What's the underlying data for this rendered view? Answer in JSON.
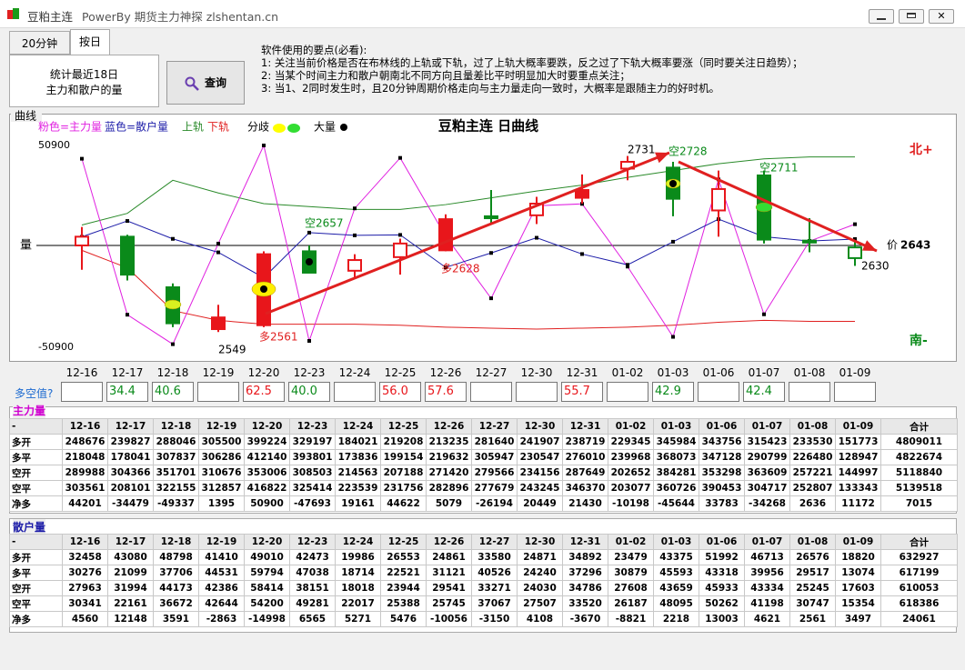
{
  "window": {
    "title": "豆粕主连",
    "subtitle": "PowerBy 期货主力神探 zlshentan.cn"
  },
  "tabs": [
    "20分钟",
    "按日"
  ],
  "panel": {
    "lines": [
      "统计最近18日",
      "主力和散户的量"
    ],
    "button": "查询"
  },
  "notes": [
    "软件使用的要点(必看):",
    "1: 关注当前价格是否在布林线的上轨或下轨，过了上轨大概率要跌，反之过了下轨大概率要涨（同时要关注日趋势）；",
    "2: 当某个时间主力和散户朝南北不同方向且量差比平时明显加大时要重点关注；",
    "3: 当1、2同时发生时，且20分钟周期价格走向与主力量走向一致时，大概率是跟随主力的好时机。"
  ],
  "dates": [
    "12-16",
    "12-17",
    "12-18",
    "12-19",
    "12-20",
    "12-23",
    "12-24",
    "12-25",
    "12-26",
    "12-27",
    "12-30",
    "12-31",
    "01-02",
    "01-03",
    "01-06",
    "01-07",
    "01-08",
    "01-09"
  ],
  "chart": {
    "group_label": "曲线",
    "title": "豆粕主连 日曲线",
    "legend": {
      "main": "粉色=主力量",
      "retail": "蓝色=散户量",
      "upper": "上轨",
      "lower": "下轨",
      "diverge": "分歧",
      "big": "大量"
    },
    "colors": {
      "main": "#e020e0",
      "retail": "#1c1ca8",
      "upper": "#2a8a2a",
      "lower": "#e02020",
      "up": "#e8161b",
      "down": "#0a8a1a"
    },
    "ylim": [
      -50900,
      50900
    ],
    "y_label": "量",
    "north": "北+",
    "south": "南-",
    "price_label": "价",
    "last_price": 2643,
    "annotations": [
      "2731",
      "空2728",
      "空2711",
      "空2657",
      "多2628",
      "多2561",
      "2549",
      "2630"
    ],
    "upper": [
      2664,
      2676,
      2710,
      2697,
      2686,
      2683,
      2680,
      2680,
      2685,
      2692,
      2699,
      2705,
      2713,
      2720,
      2727,
      2732,
      2734,
      2734
    ],
    "lower": [
      2638,
      2620,
      2576,
      2566,
      2562,
      2562,
      2562,
      2561,
      2559,
      2558,
      2557,
      2558,
      2559,
      2561,
      2564,
      2566,
      2565,
      2565
    ],
    "candles": {
      "open": [
        2643,
        2652,
        2600,
        2557,
        2561,
        2637,
        2617,
        2631,
        2638,
        2673,
        2674,
        2692,
        2722,
        2723,
        2679,
        2715,
        2648,
        2641
      ],
      "high": [
        2662,
        2654,
        2604,
        2582,
        2637,
        2643,
        2634,
        2650,
        2675,
        2700,
        2693,
        2716,
        2735,
        2729,
        2720,
        2720,
        2671,
        2647
      ],
      "low": [
        2618,
        2607,
        2559,
        2554,
        2559,
        2615,
        2609,
        2613,
        2637,
        2666,
        2665,
        2686,
        2710,
        2673,
        2652,
        2645,
        2636,
        2622
      ],
      "close": [
        2652,
        2613,
        2563,
        2569,
        2634,
        2615,
        2628,
        2645,
        2670,
        2671,
        2686,
        2700,
        2729,
        2691,
        2701,
        2649,
        2646,
        2630
      ],
      "hollow": [
        true,
        false,
        false,
        false,
        false,
        false,
        true,
        true,
        false,
        false,
        true,
        false,
        true,
        false,
        true,
        false,
        false,
        true
      ]
    }
  },
  "ratio": {
    "label": "多空值?",
    "values": [
      null,
      34.4,
      40.6,
      null,
      62.5,
      40.0,
      null,
      56.0,
      57.6,
      null,
      null,
      55.7,
      null,
      42.9,
      null,
      42.4,
      null,
      null
    ],
    "value_labels": [
      null,
      "34.4",
      "40.6",
      null,
      "62.5",
      "40.0",
      null,
      "56.0",
      "57.6",
      null,
      null,
      "55.7",
      null,
      "42.9",
      null,
      "42.4",
      null,
      null
    ]
  },
  "zhuli": {
    "title": "主力量",
    "first_header": "-",
    "total_header": "合计",
    "rows": [
      {
        "name": "多开",
        "values": [
          248676,
          239827,
          288046,
          305500,
          399224,
          329197,
          184021,
          219208,
          213235,
          281640,
          241907,
          238719,
          229345,
          345984,
          343756,
          315423,
          233530,
          151773
        ],
        "total": 4809011
      },
      {
        "name": "多平",
        "values": [
          218048,
          178041,
          307837,
          306286,
          412140,
          393801,
          173836,
          199154,
          219632,
          305947,
          230547,
          276010,
          239968,
          368073,
          347128,
          290799,
          226480,
          128947
        ],
        "total": 4822674
      },
      {
        "name": "空开",
        "values": [
          289988,
          304366,
          351701,
          310676,
          353006,
          308503,
          214563,
          207188,
          271420,
          279566,
          234156,
          287649,
          202652,
          384281,
          353298,
          363609,
          257221,
          144997
        ],
        "total": 5118840
      },
      {
        "name": "空平",
        "values": [
          303561,
          208101,
          322155,
          312857,
          416822,
          325414,
          223539,
          231756,
          282896,
          277679,
          243245,
          346370,
          203077,
          360726,
          390453,
          304717,
          252807,
          133343
        ],
        "total": 5139518
      },
      {
        "name": "净多",
        "values": [
          44201,
          -34479,
          -49337,
          1395,
          50900,
          -47693,
          19161,
          44622,
          5079,
          -26194,
          20449,
          21430,
          -10198,
          -45644,
          33783,
          -34268,
          2636,
          11172
        ],
        "total": 7015
      }
    ]
  },
  "sanhu": {
    "title": "散户量",
    "first_header": "-",
    "total_header": "合计",
    "rows": [
      {
        "name": "多开",
        "values": [
          32458,
          43080,
          48798,
          41410,
          49010,
          42473,
          19986,
          26553,
          24861,
          33580,
          24871,
          34892,
          23479,
          43375,
          51992,
          46713,
          26576,
          18820
        ],
        "total": 632927
      },
      {
        "name": "多平",
        "values": [
          30276,
          21099,
          37706,
          44531,
          59794,
          47038,
          18714,
          22521,
          31121,
          40526,
          24240,
          37296,
          30879,
          45593,
          43318,
          39956,
          29517,
          13074
        ],
        "total": 617199
      },
      {
        "name": "空开",
        "values": [
          27963,
          31994,
          44173,
          42386,
          58414,
          38151,
          18018,
          23944,
          29541,
          33271,
          24030,
          34786,
          27608,
          43659,
          45933,
          43334,
          25245,
          17603
        ],
        "total": 610053
      },
      {
        "name": "空平",
        "values": [
          30341,
          22161,
          36672,
          42644,
          54200,
          49281,
          22017,
          25388,
          25745,
          37067,
          27507,
          33520,
          26187,
          48095,
          50262,
          41198,
          30747,
          15354
        ],
        "total": 618386
      },
      {
        "name": "净多",
        "values": [
          4560,
          12148,
          3591,
          -2863,
          -14998,
          6565,
          5271,
          5476,
          -10056,
          -3150,
          4108,
          -3670,
          -8821,
          2218,
          13003,
          4621,
          2561,
          3497
        ],
        "total": 24061
      }
    ]
  }
}
